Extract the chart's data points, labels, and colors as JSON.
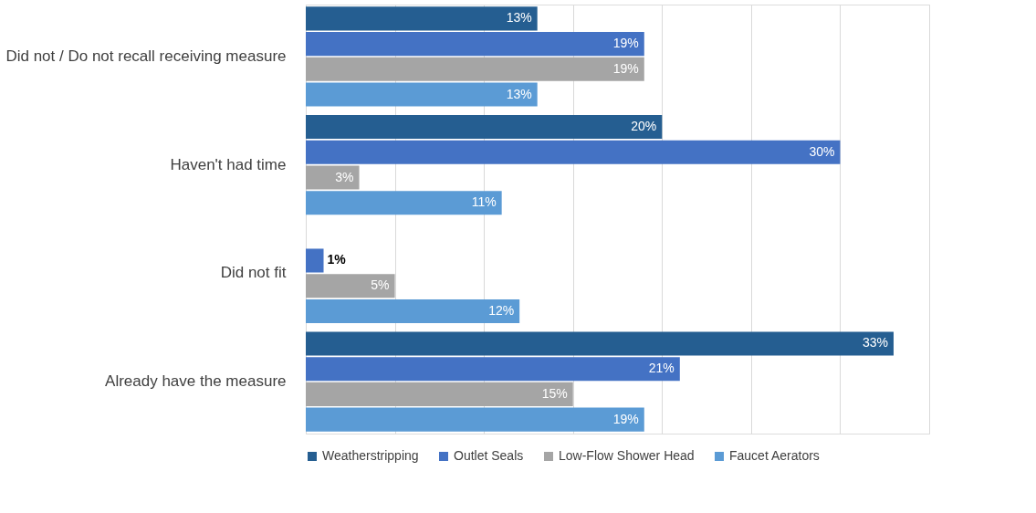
{
  "chart_data": {
    "type": "bar",
    "orientation": "horizontal",
    "categories": [
      "Did not / Do not recall receiving measure",
      "Haven't had time",
      "Did not fit",
      "Already have the measure"
    ],
    "series": [
      {
        "name": "Weatherstripping",
        "color": "#255e91",
        "values": [
          13,
          20,
          null,
          33
        ],
        "value_labels": [
          "13%",
          "20%",
          null,
          "33%"
        ]
      },
      {
        "name": "Outlet Seals",
        "color": "#4472c4",
        "values": [
          19,
          30,
          1,
          21
        ],
        "value_labels": [
          "19%",
          "30%",
          "1%",
          "21%"
        ]
      },
      {
        "name": "Low-Flow Shower Head",
        "color": "#a5a5a5",
        "values": [
          19,
          3,
          5,
          15
        ],
        "value_labels": [
          "19%",
          "3%",
          "5%",
          "15%"
        ]
      },
      {
        "name": "Faucet Aerators",
        "color": "#5b9bd5",
        "values": [
          13,
          11,
          12,
          19
        ],
        "value_labels": [
          "13%",
          "11%",
          "12%",
          "19%"
        ]
      }
    ],
    "tick_labels": "y",
    "grid": "x",
    "legend": "bottom"
  }
}
